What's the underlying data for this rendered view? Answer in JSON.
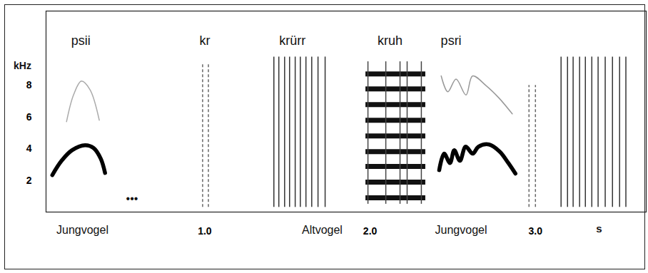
{
  "chart_data": {
    "type": "spectrogram",
    "x_label": "s",
    "y_label": "kHz",
    "xlim": [
      0.04,
      3.67
    ],
    "ylim": [
      0,
      12.7
    ],
    "xticks": [
      1,
      2,
      3
    ],
    "yticks": [
      2,
      4,
      6,
      8
    ],
    "tick_labels": true,
    "annotations": [
      {
        "text": "psii",
        "x": 0.25,
        "position": "top"
      },
      {
        "text": "kr",
        "x": 1.0,
        "position": "top"
      },
      {
        "text": "krürr",
        "x": 1.53,
        "position": "top"
      },
      {
        "text": "kruh",
        "x": 2.12,
        "position": "top"
      },
      {
        "text": "psri",
        "x": 2.49,
        "position": "top"
      },
      {
        "text": "•••",
        "x": 0.56,
        "position": "inside"
      },
      {
        "text": "Jungvogel",
        "x": 0.26,
        "position": "bottom"
      },
      {
        "text": "Altvogel",
        "x": 1.71,
        "position": "bottom"
      },
      {
        "text": "Jungvogel",
        "x": 2.55,
        "position": "bottom"
      }
    ],
    "series": [
      {
        "type": "contour",
        "color": "#000000",
        "line_style": "thick",
        "x": [
          0.078,
          0.134,
          0.198,
          0.276,
          0.328,
          0.371,
          0.397
        ],
        "values": [
          2.34,
          3.24,
          3.91,
          4.22,
          4.04,
          3.37,
          2.47
        ]
      },
      {
        "type": "contour",
        "color": "#aaaaaa",
        "line_style": "thin",
        "x": [
          0.164,
          0.207,
          0.254,
          0.306,
          0.362
        ],
        "values": [
          5.71,
          7.42,
          8.27,
          7.73,
          5.8
        ]
      },
      {
        "type": "click",
        "color": "#666666",
        "line_style": "dashed",
        "x": [
          0.987,
          1.022
        ],
        "range": [
          0.3,
          9.4
        ]
      },
      {
        "type": "click",
        "color": "#333333",
        "line_style": "solid",
        "x": [
          1.418,
          1.448,
          1.483,
          1.513,
          1.547,
          1.578,
          1.612,
          1.647,
          1.685,
          1.728
        ],
        "range": [
          0.3,
          9.8
        ]
      },
      {
        "type": "harmonic",
        "color": "#111111",
        "line_style": "thick",
        "x_range": [
          1.974,
          2.336
        ],
        "values": [
          0.9,
          1.89,
          2.88,
          3.82,
          4.81,
          5.8,
          6.79,
          7.78,
          8.72
        ]
      },
      {
        "type": "click",
        "color": "#444444",
        "line_style": "solid",
        "x": [
          1.987,
          2.095,
          2.181,
          2.224,
          2.31
        ],
        "range": [
          0.5,
          9.5
        ]
      },
      {
        "type": "contour",
        "color": "#000000",
        "line_style": "thick",
        "x": [
          2.418,
          2.448,
          2.483,
          2.509,
          2.543,
          2.578,
          2.621,
          2.655,
          2.72,
          2.784,
          2.836,
          2.879
        ],
        "values": [
          2.65,
          3.69,
          3.1,
          3.91,
          3.24,
          4.13,
          3.69,
          4.13,
          4.27,
          3.82,
          3.1,
          2.43
        ]
      },
      {
        "type": "contour",
        "color": "#999999",
        "line_style": "thin",
        "x": [
          2.43,
          2.47,
          2.52,
          2.58,
          2.62,
          2.7,
          2.78,
          2.86
        ],
        "values": [
          8.6,
          7.6,
          8.4,
          7.4,
          8.6,
          8.0,
          7.2,
          6.2
        ]
      },
      {
        "type": "click",
        "color": "#666666",
        "line_style": "dashed",
        "x": [
          2.961,
          3.0
        ],
        "range": [
          0.3,
          8.0
        ]
      },
      {
        "type": "click",
        "color": "#333333",
        "line_style": "solid",
        "x": [
          3.155,
          3.194,
          3.228,
          3.267,
          3.302,
          3.341,
          3.379,
          3.422,
          3.466,
          3.509,
          3.547
        ],
        "range": [
          0.3,
          9.8
        ]
      }
    ]
  }
}
